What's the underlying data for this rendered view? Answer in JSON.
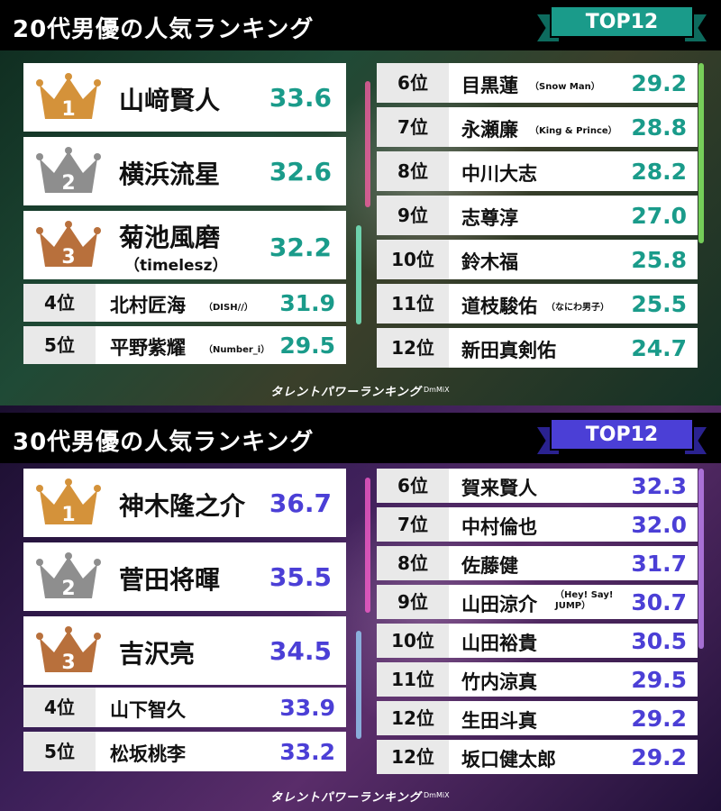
{
  "colors": {
    "teal": "#1a9b8a",
    "indigo": "#4b3fd6",
    "gold": "#d4923a",
    "silver": "#8e8e8e",
    "bronze": "#b8703c"
  },
  "sections": [
    {
      "title": "20代男優の人気ランキング",
      "badge": "TOP12",
      "top3": [
        {
          "rank_icon": "1",
          "name": "山﨑賢人",
          "sub": "",
          "score": "33.6"
        },
        {
          "rank_icon": "2",
          "name": "横浜流星",
          "sub": "",
          "score": "32.6"
        },
        {
          "rank_icon": "3",
          "name": "菊池風磨",
          "sub": "（timelesz）",
          "score": "32.2"
        }
      ],
      "left_rows": [
        {
          "rank": "4位",
          "name": "北村匠海",
          "sub": "（DISH//）",
          "score": "31.9"
        },
        {
          "rank": "5位",
          "name": "平野紫耀",
          "sub": "（Number_i）",
          "score": "29.5"
        }
      ],
      "right_rows": [
        {
          "rank": "6位",
          "name": "目黒蓮",
          "sub": "（Snow Man）",
          "score": "29.2"
        },
        {
          "rank": "7位",
          "name": "永瀬廉",
          "sub": "（King & Prince）",
          "score": "28.8"
        },
        {
          "rank": "8位",
          "name": "中川大志",
          "sub": "",
          "score": "28.2"
        },
        {
          "rank": "9位",
          "name": "志尊淳",
          "sub": "",
          "score": "27.0"
        },
        {
          "rank": "10位",
          "name": "鈴木福",
          "sub": "",
          "score": "25.8"
        },
        {
          "rank": "11位",
          "name": "道枝駿佑",
          "sub": "（なにわ男子）",
          "score": "25.5"
        },
        {
          "rank": "12位",
          "name": "新田真剣佑",
          "sub": "",
          "score": "24.7"
        }
      ],
      "footer": "タレントパワーランキング",
      "footer_small": "DmMiX"
    },
    {
      "title": "30代男優の人気ランキング",
      "badge": "TOP12",
      "top3": [
        {
          "rank_icon": "1",
          "name": "神木隆之介",
          "sub": "",
          "score": "36.7"
        },
        {
          "rank_icon": "2",
          "name": "菅田将暉",
          "sub": "",
          "score": "35.5"
        },
        {
          "rank_icon": "3",
          "name": "吉沢亮",
          "sub": "",
          "score": "34.5"
        }
      ],
      "left_rows": [
        {
          "rank": "4位",
          "name": "山下智久",
          "sub": "",
          "score": "33.9"
        },
        {
          "rank": "5位",
          "name": "松坂桃李",
          "sub": "",
          "score": "33.2"
        }
      ],
      "right_rows": [
        {
          "rank": "6位",
          "name": "賀来賢人",
          "sub": "",
          "score": "32.3"
        },
        {
          "rank": "7位",
          "name": "中村倫也",
          "sub": "",
          "score": "32.0"
        },
        {
          "rank": "8位",
          "name": "佐藤健",
          "sub": "",
          "score": "31.7"
        },
        {
          "rank": "9位",
          "name": "山田涼介",
          "sub": "（Hey! Say! JUMP）",
          "score": "30.7"
        },
        {
          "rank": "10位",
          "name": "山田裕貴",
          "sub": "",
          "score": "30.5"
        },
        {
          "rank": "11位",
          "name": "竹内涼真",
          "sub": "",
          "score": "29.5"
        },
        {
          "rank": "12位",
          "name": "生田斗真",
          "sub": "",
          "score": "29.2"
        },
        {
          "rank": "12位",
          "name": "坂口健太郎",
          "sub": "",
          "score": "29.2"
        }
      ],
      "footer": "タレントパワーランキング",
      "footer_small": "DmMiX"
    }
  ]
}
